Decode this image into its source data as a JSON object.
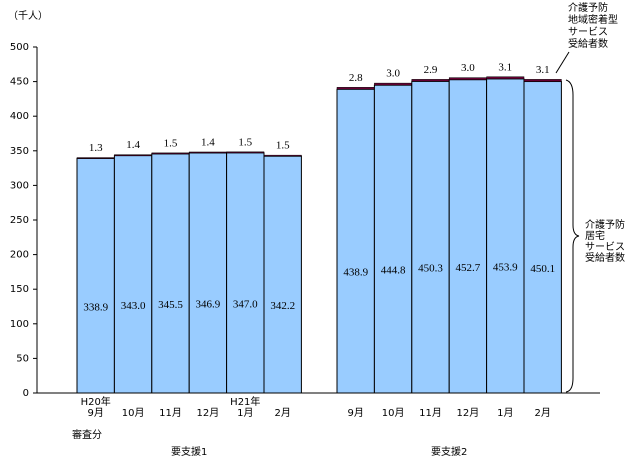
{
  "chart_data": {
    "type": "stacked-bar",
    "y_label": "（千人）",
    "categories": [
      "H20年\n9月",
      "10月",
      "11月",
      "12月",
      "H21年\n1月",
      "2月",
      "9月",
      "10月",
      "11月",
      "12月",
      "1月",
      "2月"
    ],
    "groups": [
      "要支援1",
      "要支援2"
    ],
    "annotation": "審査分",
    "series": [
      {
        "name": "介護予防\n居宅\nサービス\n受給者数",
        "color": "#99ccff",
        "values": [
          338.9,
          343.0,
          345.5,
          346.9,
          347.0,
          342.2,
          438.9,
          444.8,
          450.3,
          452.7,
          453.9,
          450.1
        ],
        "value_labels": [
          "338.9",
          "343.0",
          "345.5",
          "346.9",
          "347.0",
          "342.2",
          "438.9",
          "444.8",
          "450.3",
          "452.7",
          "453.9",
          "450.1"
        ]
      },
      {
        "name": "介護予防\n地域密着型\nサービス\n受給者数",
        "color": "#660033",
        "values": [
          1.3,
          1.4,
          1.5,
          1.4,
          1.5,
          1.5,
          2.8,
          3.0,
          2.9,
          3.0,
          3.1,
          3.1
        ],
        "value_labels": [
          "1.3",
          "1.4",
          "1.5",
          "1.4",
          "1.5",
          "1.5",
          "2.8",
          "3.0",
          "2.9",
          "3.0",
          "3.1",
          "3.1"
        ]
      }
    ],
    "ylim": [
      0,
      500
    ],
    "yticks": [
      0,
      50,
      100,
      150,
      200,
      250,
      300,
      350,
      400,
      450,
      500
    ]
  }
}
